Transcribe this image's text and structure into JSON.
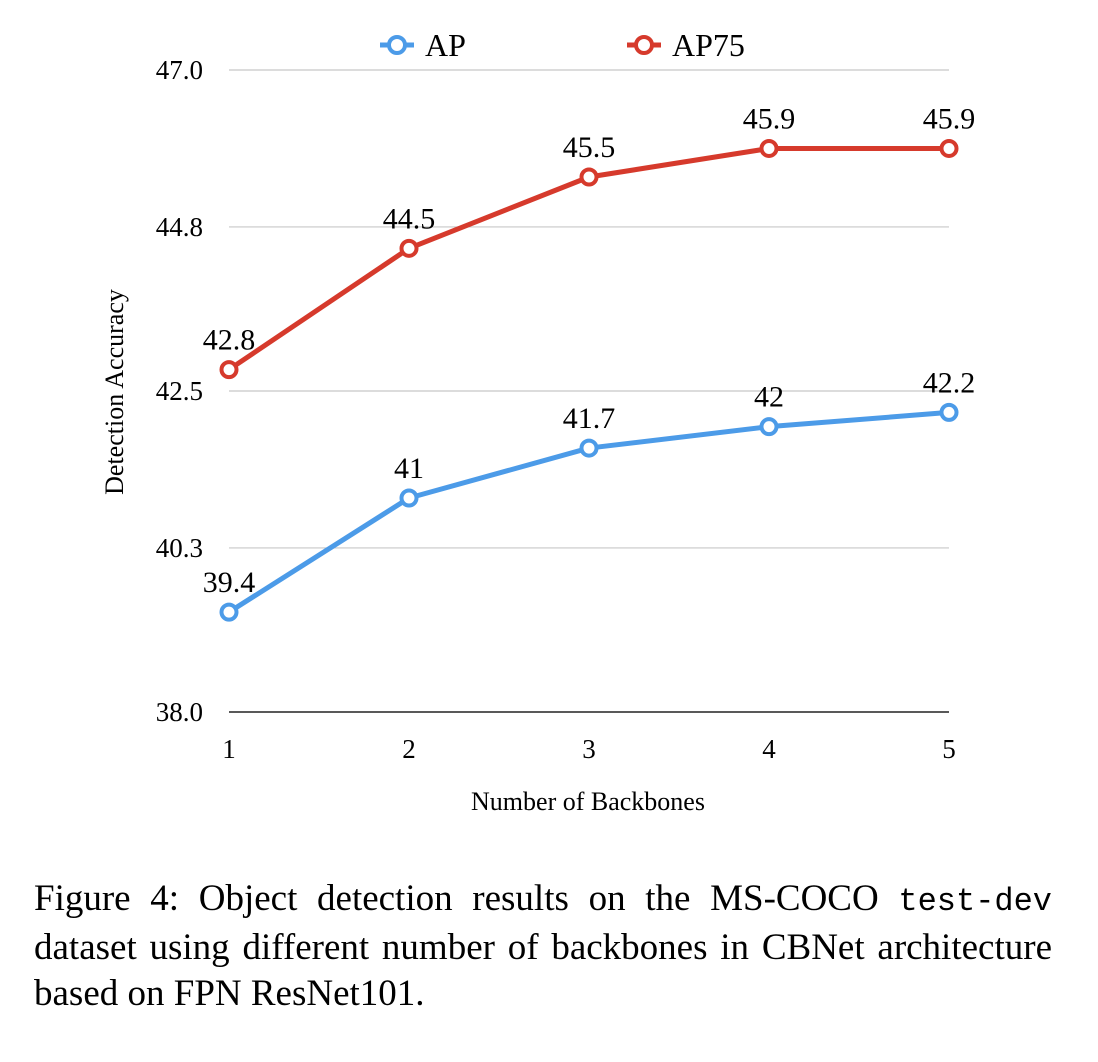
{
  "chart_data": {
    "type": "line",
    "x": [
      1,
      2,
      3,
      4,
      5
    ],
    "xlabel": "Number of Backbones",
    "ylabel": "Detection Accuracy",
    "xticks": [
      "1",
      "2",
      "3",
      "4",
      "5"
    ],
    "yticks": [
      "38.0",
      "40.3",
      "42.5",
      "44.8",
      "47.0"
    ],
    "ylim": [
      38.0,
      47.0
    ],
    "grid": "horizontal",
    "legend_position": "top-center",
    "series": [
      {
        "name": "AP",
        "values": [
          39.4,
          41,
          41.7,
          42,
          42.2
        ],
        "labels": [
          "39.4",
          "41",
          "41.7",
          "42",
          "42.2"
        ],
        "color": "#4C9BE8"
      },
      {
        "name": "AP75",
        "values": [
          42.8,
          44.5,
          45.5,
          45.9,
          45.9
        ],
        "labels": [
          "42.8",
          "44.5",
          "45.5",
          "45.9",
          "45.9"
        ],
        "color": "#D63A2C"
      }
    ]
  },
  "caption": {
    "part1": "Figure 4: Object detection results on the MS-COCO",
    "code": "test-dev",
    "part2": "dataset using different number of backbones in CBNet architecture based on FPN ResNet101."
  }
}
